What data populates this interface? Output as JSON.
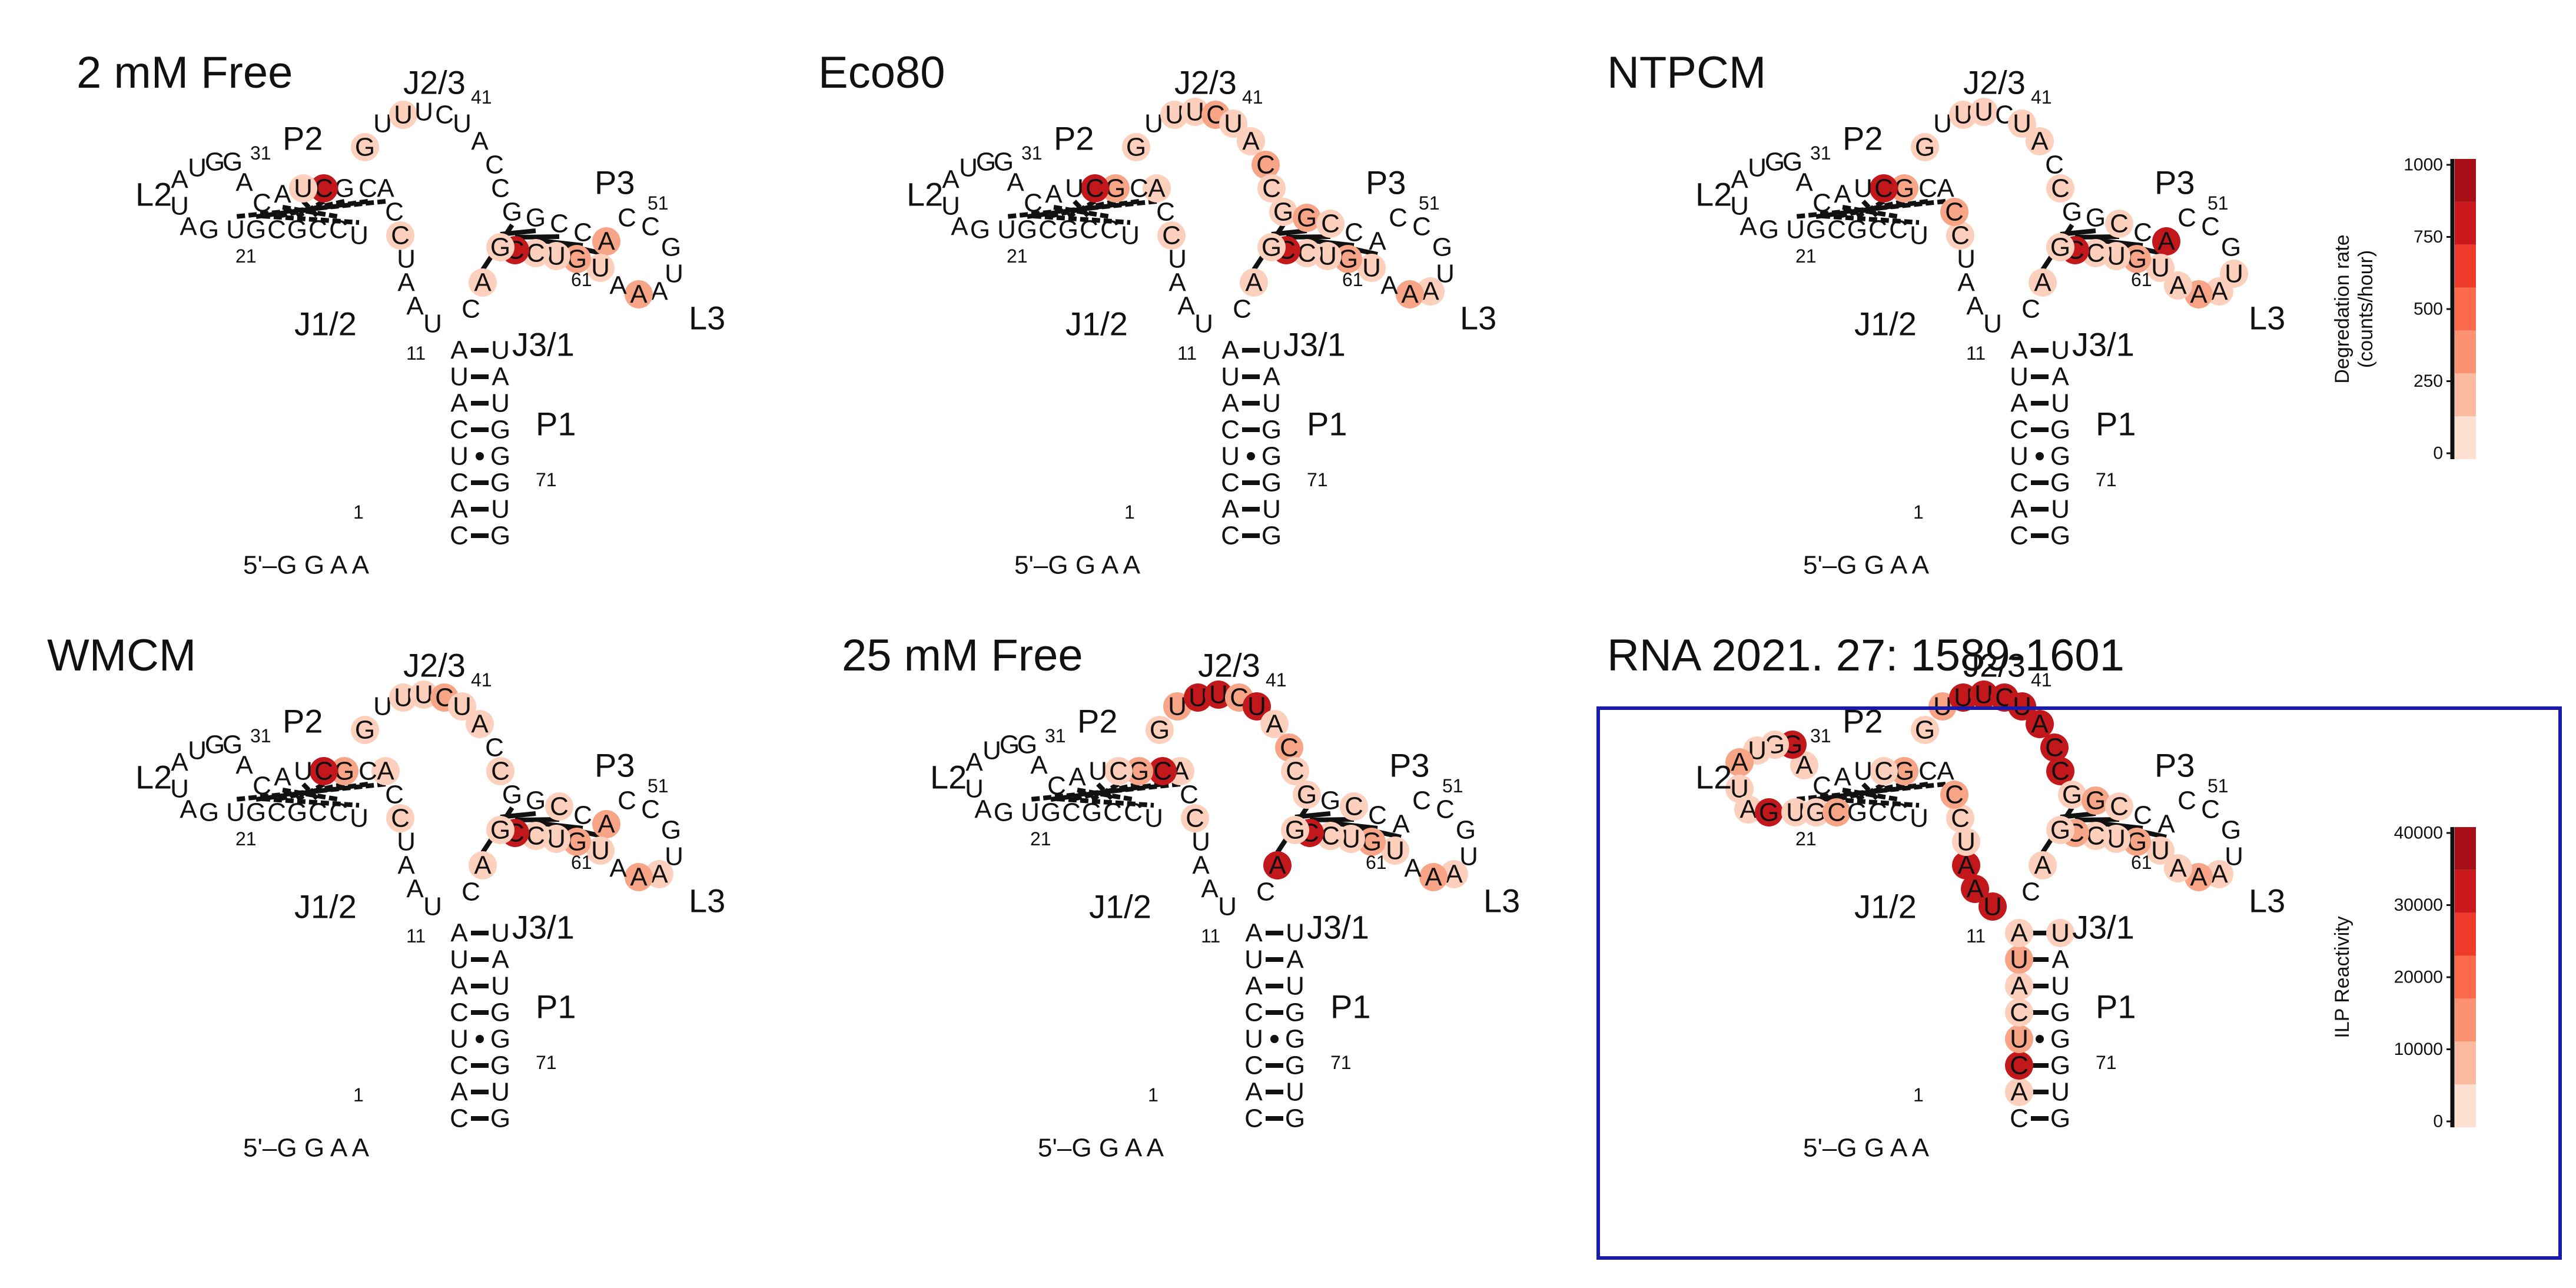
{
  "panels": [
    {
      "id": "p1",
      "title": "2 mM Free"
    },
    {
      "id": "p2",
      "title": "Eco80"
    },
    {
      "id": "p3",
      "title": "NTPCM"
    },
    {
      "id": "p4",
      "title": "WMCM"
    },
    {
      "id": "p5",
      "title": "25 mM Free"
    },
    {
      "id": "p6",
      "title": "RNA 2021. 27: 1589-1601"
    }
  ],
  "structure": {
    "five_prime": "5'–G G A A",
    "region_labels": {
      "L2": "L2",
      "P2": "P2",
      "J2_3": "J2/3",
      "P3": "P3",
      "J1_2": "J1/2",
      "J3_1": "J3/1",
      "L3": "L3",
      "P1": "P1"
    },
    "position_numbers": {
      "n1": "1",
      "n11": "11",
      "n21": "21",
      "n31": "31",
      "n41": "41",
      "n51": "51",
      "n61": "61",
      "n71": "71"
    }
  },
  "legend_degradation": {
    "label": "Degredation rate",
    "unit": "(counts/hour)",
    "ticks": [
      "1000",
      "750",
      "500",
      "250",
      "0"
    ],
    "colors": [
      "#fee0d2",
      "#fcbba1",
      "#fc9272",
      "#fb6a4a",
      "#ef3b2c",
      "#cb181d",
      "#a50f15"
    ]
  },
  "legend_ilp": {
    "label": "ILP Reactivity",
    "ticks": [
      "40000",
      "30000",
      "20000",
      "10000",
      "0"
    ],
    "colors": [
      "#fee0d2",
      "#fcbba1",
      "#fc9272",
      "#fb6a4a",
      "#ef3b2c",
      "#cb181d",
      "#a50f15"
    ]
  }
}
